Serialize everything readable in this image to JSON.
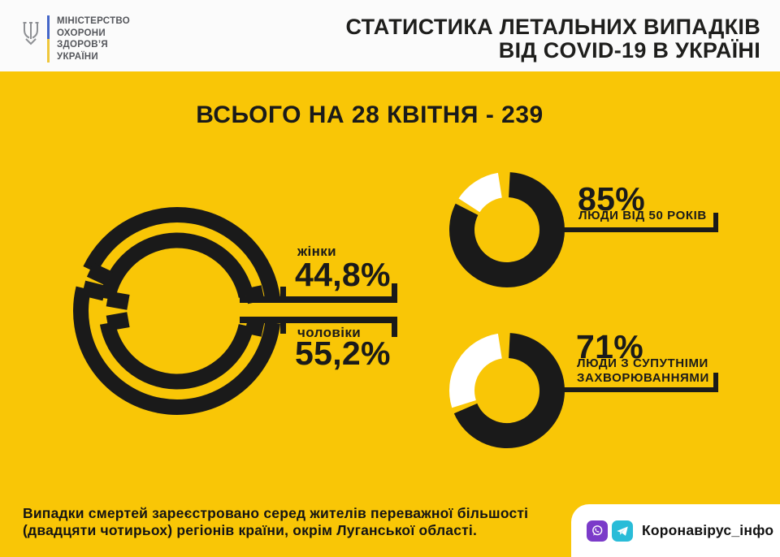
{
  "header": {
    "ministry": {
      "lines": [
        "МІНІСТЕРСТВО",
        "ОХОРОНИ",
        "ЗДОРОВ’Я",
        "УКРАЇНИ"
      ]
    },
    "title_line1": "СТАТИСТИКА ЛЕТАЛЬНИХ ВИПАДКІВ",
    "title_line2": "ВІД COVID-19 В УКРАЇНІ"
  },
  "main": {
    "heading": "ВСЬОГО НА 28 КВІТНЯ - 239"
  },
  "chart_data": [
    {
      "type": "donut",
      "name": "deaths-by-gender",
      "series": [
        {
          "label": "жінки",
          "value": 44.8,
          "display": "44,8%"
        },
        {
          "label": "чоловіки",
          "value": 55.2,
          "display": "55,2%"
        }
      ]
    },
    {
      "type": "donut",
      "name": "deaths-age-over-50",
      "value": 85,
      "display": "85%",
      "label": "ЛЮДИ ВІД 50 РОКІВ"
    },
    {
      "type": "donut",
      "name": "deaths-with-comorbidities",
      "value": 71,
      "display": "71%",
      "label_line1": "ЛЮДИ З СУПУТНІМИ",
      "label_line2": "ЗАХВОРЮВАННЯМИ"
    }
  ],
  "footer": {
    "note_line1": "Випадки смертей зареєстровано серед жителів переважної більшості",
    "note_line2": "(двадцяти чотирьох) регіонів країни, окрім Луганської області.",
    "channel_name": "Коронавірус_інфо"
  },
  "colors": {
    "background_yellow": "#F9C606",
    "panel_white": "#FBFBFB",
    "ink_black": "#1A1A1A",
    "wedge_white": "#FFFFFF",
    "logo_blue": "#4466C8",
    "logo_yellow": "#EFC73B",
    "viber_purple": "#7B3BC9",
    "telegram_cyan": "#29BCD8"
  }
}
